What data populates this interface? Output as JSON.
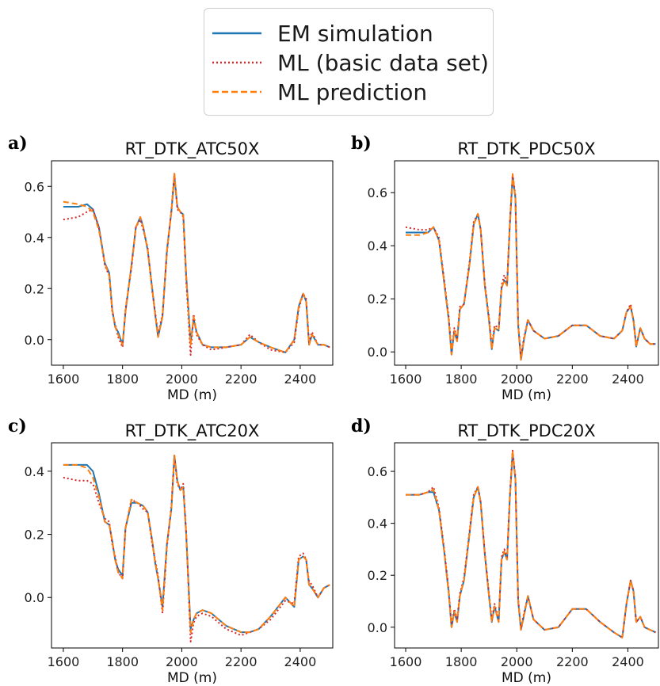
{
  "colors": {
    "em": "#1f77b4",
    "ml_basic": "#d62728",
    "ml_pred": "#ff7f0e"
  },
  "legend": {
    "items": [
      {
        "label": "EM simulation",
        "style": "solid",
        "color": "#1f77b4"
      },
      {
        "label": "ML (basic data set)",
        "style": "dotted",
        "color": "#d62728"
      },
      {
        "label": "ML prediction",
        "style": "dashed",
        "color": "#ff7f0e"
      }
    ]
  },
  "chart_data": [
    {
      "type": "line",
      "letter": "a)",
      "title": "RT_DTK_ATC50X",
      "xlabel": "MD (m)",
      "ylabel": "",
      "xlim": [
        1560,
        2510
      ],
      "ylim": [
        -0.1,
        0.7
      ],
      "xticks": [
        1600,
        1800,
        2000,
        2200,
        2400
      ],
      "yticks": [
        "0.0",
        "0.2",
        "0.4",
        "0.6"
      ],
      "x": [
        1600,
        1650,
        1680,
        1700,
        1720,
        1740,
        1755,
        1765,
        1775,
        1785,
        1800,
        1810,
        1830,
        1845,
        1860,
        1870,
        1885,
        1900,
        1910,
        1920,
        1935,
        1950,
        1965,
        1975,
        1985,
        1995,
        2005,
        2015,
        2030,
        2040,
        2050,
        2070,
        2100,
        2150,
        2200,
        2230,
        2260,
        2300,
        2350,
        2380,
        2395,
        2410,
        2420,
        2430,
        2440,
        2460,
        2480,
        2500
      ],
      "series": [
        {
          "name": "EM simulation",
          "values": [
            0.52,
            0.52,
            0.53,
            0.51,
            0.44,
            0.3,
            0.26,
            0.12,
            0.05,
            0.03,
            -0.02,
            0.11,
            0.29,
            0.44,
            0.48,
            0.44,
            0.35,
            0.2,
            0.1,
            0.01,
            0.09,
            0.35,
            0.5,
            0.64,
            0.52,
            0.5,
            0.49,
            0.25,
            -0.01,
            0.08,
            0.03,
            -0.02,
            -0.03,
            -0.03,
            -0.02,
            0.01,
            -0.01,
            -0.03,
            -0.05,
            0.0,
            0.13,
            0.18,
            0.15,
            -0.02,
            0.02,
            -0.02,
            -0.02,
            -0.03
          ]
        },
        {
          "name": "ML (basic data set)",
          "values": [
            0.47,
            0.48,
            0.5,
            0.51,
            0.44,
            0.29,
            0.25,
            0.11,
            0.06,
            0.01,
            -0.03,
            0.12,
            0.28,
            0.44,
            0.47,
            0.43,
            0.36,
            0.19,
            0.11,
            0.02,
            0.1,
            0.34,
            0.51,
            0.65,
            0.51,
            0.5,
            0.48,
            0.23,
            -0.06,
            0.1,
            0.02,
            -0.02,
            -0.04,
            -0.03,
            -0.02,
            0.02,
            -0.01,
            -0.04,
            -0.05,
            -0.01,
            0.12,
            0.18,
            0.16,
            -0.01,
            0.03,
            -0.02,
            -0.02,
            -0.03
          ]
        },
        {
          "name": "ML prediction",
          "values": [
            0.54,
            0.53,
            0.52,
            0.5,
            0.43,
            0.3,
            0.25,
            0.12,
            0.05,
            0.02,
            -0.02,
            0.11,
            0.29,
            0.44,
            0.48,
            0.44,
            0.35,
            0.2,
            0.1,
            0.01,
            0.09,
            0.35,
            0.5,
            0.65,
            0.52,
            0.5,
            0.49,
            0.25,
            -0.02,
            0.09,
            0.03,
            -0.02,
            -0.03,
            -0.03,
            -0.02,
            0.01,
            -0.01,
            -0.03,
            -0.05,
            0.0,
            0.13,
            0.18,
            0.15,
            -0.02,
            0.02,
            -0.02,
            -0.02,
            -0.03
          ]
        }
      ]
    },
    {
      "type": "line",
      "letter": "b)",
      "title": "RT_DTK_PDC50X",
      "xlabel": "MD (m)",
      "ylabel": "",
      "xlim": [
        1560,
        2510
      ],
      "ylim": [
        -0.05,
        0.72
      ],
      "xticks": [
        1600,
        1800,
        2000,
        2200,
        2400
      ],
      "yticks": [
        "0.0",
        "0.2",
        "0.4",
        "0.6"
      ],
      "x": [
        1600,
        1650,
        1680,
        1700,
        1720,
        1740,
        1755,
        1765,
        1775,
        1785,
        1795,
        1810,
        1830,
        1845,
        1860,
        1870,
        1885,
        1900,
        1910,
        1920,
        1935,
        1945,
        1955,
        1965,
        1975,
        1985,
        1995,
        2005,
        2015,
        2025,
        2040,
        2060,
        2100,
        2150,
        2200,
        2250,
        2300,
        2350,
        2380,
        2395,
        2410,
        2420,
        2430,
        2445,
        2460,
        2480,
        2500
      ],
      "series": [
        {
          "name": "EM simulation",
          "values": [
            0.45,
            0.45,
            0.45,
            0.47,
            0.42,
            0.25,
            0.12,
            -0.01,
            0.08,
            0.04,
            0.16,
            0.18,
            0.33,
            0.48,
            0.52,
            0.46,
            0.25,
            0.12,
            0.01,
            0.09,
            0.08,
            0.24,
            0.27,
            0.25,
            0.48,
            0.66,
            0.58,
            0.1,
            -0.03,
            0.04,
            0.12,
            0.08,
            0.05,
            0.06,
            0.1,
            0.1,
            0.06,
            0.05,
            0.08,
            0.15,
            0.17,
            0.12,
            0.02,
            0.09,
            0.05,
            0.03,
            0.03
          ]
        },
        {
          "name": "ML (basic data set)",
          "values": [
            0.47,
            0.46,
            0.46,
            0.47,
            0.43,
            0.26,
            0.13,
            0.0,
            0.09,
            0.05,
            0.17,
            0.18,
            0.34,
            0.49,
            0.52,
            0.46,
            0.26,
            0.13,
            0.02,
            0.1,
            0.09,
            0.25,
            0.29,
            0.26,
            0.49,
            0.67,
            0.59,
            0.11,
            -0.02,
            0.05,
            0.12,
            0.08,
            0.05,
            0.06,
            0.1,
            0.1,
            0.06,
            0.05,
            0.08,
            0.15,
            0.18,
            0.12,
            0.02,
            0.09,
            0.05,
            0.03,
            0.03
          ]
        },
        {
          "name": "ML prediction",
          "values": [
            0.44,
            0.44,
            0.45,
            0.47,
            0.42,
            0.25,
            0.12,
            -0.01,
            0.08,
            0.04,
            0.16,
            0.18,
            0.33,
            0.48,
            0.52,
            0.46,
            0.25,
            0.12,
            0.01,
            0.09,
            0.08,
            0.24,
            0.27,
            0.25,
            0.48,
            0.67,
            0.58,
            0.1,
            -0.03,
            0.04,
            0.12,
            0.08,
            0.05,
            0.06,
            0.1,
            0.1,
            0.06,
            0.05,
            0.08,
            0.15,
            0.17,
            0.12,
            0.02,
            0.09,
            0.05,
            0.03,
            0.03
          ]
        }
      ]
    },
    {
      "type": "line",
      "letter": "c)",
      "title": "RT_DTK_ATC20X",
      "xlabel": "MD (m)",
      "ylabel": "",
      "xlim": [
        1560,
        2510
      ],
      "ylim": [
        -0.16,
        0.49
      ],
      "xticks": [
        1600,
        1800,
        2000,
        2200,
        2400
      ],
      "yticks": [
        "0.0",
        "0.2",
        "0.4"
      ],
      "x": [
        1600,
        1650,
        1680,
        1700,
        1720,
        1740,
        1755,
        1765,
        1775,
        1785,
        1800,
        1810,
        1830,
        1850,
        1870,
        1885,
        1900,
        1910,
        1920,
        1935,
        1950,
        1965,
        1975,
        1985,
        1995,
        2005,
        2015,
        2030,
        2040,
        2050,
        2070,
        2100,
        2150,
        2200,
        2230,
        2260,
        2300,
        2350,
        2380,
        2395,
        2410,
        2420,
        2430,
        2440,
        2460,
        2480,
        2500
      ],
      "series": [
        {
          "name": "EM simulation",
          "values": [
            0.42,
            0.42,
            0.42,
            0.4,
            0.33,
            0.24,
            0.23,
            0.18,
            0.12,
            0.09,
            0.07,
            0.22,
            0.3,
            0.3,
            0.29,
            0.27,
            0.18,
            0.11,
            0.06,
            -0.03,
            0.17,
            0.28,
            0.45,
            0.37,
            0.34,
            0.35,
            0.2,
            -0.1,
            -0.07,
            -0.05,
            -0.04,
            -0.05,
            -0.09,
            -0.11,
            -0.11,
            -0.1,
            -0.06,
            0.0,
            -0.03,
            0.12,
            0.13,
            0.12,
            0.04,
            0.03,
            0.0,
            0.03,
            0.04
          ]
        },
        {
          "name": "ML (basic data set)",
          "values": [
            0.38,
            0.37,
            0.37,
            0.36,
            0.3,
            0.25,
            0.24,
            0.17,
            0.13,
            0.08,
            0.06,
            0.22,
            0.31,
            0.3,
            0.28,
            0.27,
            0.17,
            0.12,
            0.07,
            -0.05,
            0.16,
            0.29,
            0.45,
            0.36,
            0.34,
            0.36,
            0.21,
            -0.14,
            -0.08,
            -0.06,
            -0.05,
            -0.06,
            -0.1,
            -0.12,
            -0.11,
            -0.1,
            -0.07,
            -0.01,
            -0.02,
            0.13,
            0.14,
            0.12,
            0.05,
            0.04,
            0.0,
            0.03,
            0.04
          ]
        },
        {
          "name": "ML prediction",
          "values": [
            0.42,
            0.42,
            0.41,
            0.38,
            0.32,
            0.24,
            0.23,
            0.18,
            0.12,
            0.08,
            0.06,
            0.22,
            0.31,
            0.3,
            0.29,
            0.27,
            0.18,
            0.11,
            0.06,
            -0.04,
            0.17,
            0.28,
            0.45,
            0.37,
            0.34,
            0.35,
            0.2,
            -0.11,
            -0.07,
            -0.05,
            -0.04,
            -0.05,
            -0.09,
            -0.11,
            -0.11,
            -0.1,
            -0.06,
            0.0,
            -0.03,
            0.12,
            0.13,
            0.12,
            0.04,
            0.03,
            0.0,
            0.03,
            0.04
          ]
        }
      ]
    },
    {
      "type": "line",
      "letter": "d)",
      "title": "RT_DTK_PDC20X",
      "xlabel": "MD (m)",
      "ylabel": "",
      "xlim": [
        1560,
        2510
      ],
      "ylim": [
        -0.08,
        0.71
      ],
      "xticks": [
        1600,
        1800,
        2000,
        2200,
        2400
      ],
      "yticks": [
        "0.0",
        "0.2",
        "0.4",
        "0.6"
      ],
      "x": [
        1600,
        1650,
        1680,
        1700,
        1720,
        1740,
        1755,
        1765,
        1775,
        1785,
        1795,
        1810,
        1830,
        1845,
        1860,
        1870,
        1885,
        1900,
        1910,
        1920,
        1935,
        1945,
        1955,
        1965,
        1975,
        1985,
        1995,
        2005,
        2015,
        2025,
        2040,
        2060,
        2100,
        2150,
        2200,
        2250,
        2300,
        2350,
        2380,
        2395,
        2410,
        2420,
        2430,
        2445,
        2460,
        2480,
        2500
      ],
      "series": [
        {
          "name": "EM simulation",
          "values": [
            0.51,
            0.51,
            0.52,
            0.52,
            0.45,
            0.28,
            0.13,
            0.0,
            0.06,
            0.02,
            0.12,
            0.18,
            0.36,
            0.5,
            0.54,
            0.48,
            0.28,
            0.12,
            0.02,
            0.08,
            0.02,
            0.26,
            0.29,
            0.26,
            0.5,
            0.67,
            0.57,
            0.1,
            -0.01,
            0.04,
            0.12,
            0.03,
            -0.01,
            0.0,
            0.07,
            0.07,
            0.02,
            -0.02,
            -0.04,
            0.09,
            0.18,
            0.14,
            0.02,
            0.04,
            0.0,
            -0.01,
            -0.02
          ]
        },
        {
          "name": "ML (basic data set)",
          "values": [
            0.51,
            0.51,
            0.52,
            0.54,
            0.46,
            0.29,
            0.14,
            0.01,
            0.07,
            0.03,
            0.13,
            0.19,
            0.37,
            0.51,
            0.54,
            0.48,
            0.29,
            0.13,
            0.03,
            0.09,
            0.03,
            0.27,
            0.3,
            0.27,
            0.51,
            0.68,
            0.58,
            0.11,
            -0.01,
            0.05,
            0.12,
            0.03,
            -0.01,
            0.0,
            0.07,
            0.07,
            0.02,
            -0.02,
            -0.04,
            0.09,
            0.18,
            0.14,
            0.02,
            0.04,
            0.0,
            -0.01,
            -0.02
          ]
        },
        {
          "name": "ML prediction",
          "values": [
            0.51,
            0.51,
            0.52,
            0.53,
            0.45,
            0.28,
            0.13,
            0.0,
            0.06,
            0.02,
            0.12,
            0.18,
            0.36,
            0.5,
            0.54,
            0.48,
            0.28,
            0.12,
            0.02,
            0.08,
            0.02,
            0.26,
            0.29,
            0.26,
            0.5,
            0.68,
            0.57,
            0.1,
            -0.01,
            0.04,
            0.12,
            0.03,
            -0.01,
            0.0,
            0.07,
            0.07,
            0.02,
            -0.02,
            -0.04,
            0.09,
            0.18,
            0.14,
            0.02,
            0.04,
            0.0,
            -0.01,
            -0.02
          ]
        }
      ]
    }
  ]
}
